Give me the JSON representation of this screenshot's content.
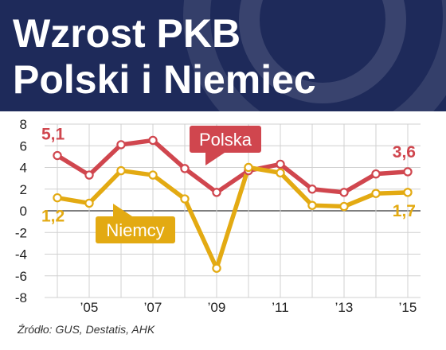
{
  "header": {
    "title_line_1": "Wzrost PKB",
    "title_line_2": "Polski i Niemiec",
    "background": "#1e2a5a"
  },
  "source": "Źródło: GUS, Destatis, AHK",
  "chart_data": {
    "type": "line",
    "title": "Wzrost PKB Polski i Niemiec",
    "x": [
      2004,
      2005,
      2006,
      2007,
      2008,
      2009,
      2010,
      2011,
      2012,
      2013,
      2014,
      2015
    ],
    "x_tick_values": [
      2005,
      2007,
      2009,
      2011,
      2013,
      2015
    ],
    "x_tick_labels": [
      "’05",
      "’07",
      "’09",
      "’11",
      "’13",
      "’15"
    ],
    "ylim": [
      -8,
      8
    ],
    "y_ticks": [
      -8,
      -6,
      -4,
      -2,
      0,
      2,
      4,
      6,
      8
    ],
    "grid": true,
    "series": [
      {
        "name": "Polska",
        "color": "#d0464e",
        "values": [
          5.1,
          3.3,
          6.1,
          6.5,
          3.9,
          1.7,
          3.7,
          4.3,
          2.0,
          1.7,
          3.4,
          3.6
        ],
        "start_label": "5,1",
        "end_label": "3,6"
      },
      {
        "name": "Niemcy",
        "color": "#e3aa12",
        "values": [
          1.2,
          0.7,
          3.7,
          3.3,
          1.1,
          -5.3,
          4.0,
          3.5,
          0.5,
          0.4,
          1.6,
          1.7
        ],
        "start_label": "1,2",
        "end_label": "1,7"
      }
    ]
  }
}
